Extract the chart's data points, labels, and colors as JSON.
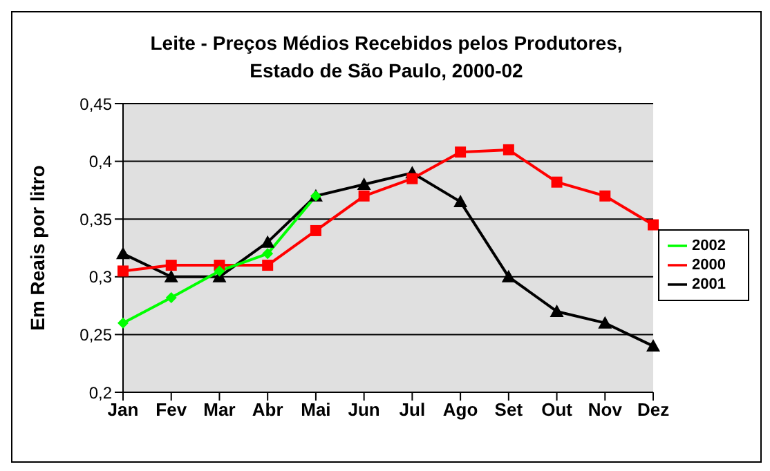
{
  "chart_data": {
    "type": "line",
    "title": "Leite - Preços Médios Recebidos pelos Produtores, Estado de São Paulo, 2000-02",
    "ylabel": "Em Reais por litro",
    "categories": [
      "Jan",
      "Fev",
      "Mar",
      "Abr",
      "Mai",
      "Jun",
      "Jul",
      "Ago",
      "Set",
      "Out",
      "Nov",
      "Dez"
    ],
    "series": [
      {
        "name": "2002",
        "color": "#00ff00",
        "marker": "diamond",
        "values": [
          0.26,
          0.282,
          0.305,
          0.32,
          0.37,
          null,
          null,
          null,
          null,
          null,
          null,
          null
        ]
      },
      {
        "name": "2000",
        "color": "#ff0000",
        "marker": "square",
        "values": [
          0.305,
          0.31,
          0.31,
          0.31,
          0.34,
          0.37,
          0.385,
          0.408,
          0.41,
          0.382,
          0.37,
          0.345
        ]
      },
      {
        "name": "2001",
        "color": "#000000",
        "marker": "triangle",
        "values": [
          0.32,
          0.3,
          0.3,
          0.33,
          0.37,
          0.38,
          0.39,
          0.365,
          0.3,
          0.27,
          0.26,
          0.24
        ]
      }
    ],
    "ylim": [
      0.2,
      0.45
    ],
    "yticks": [
      {
        "value": 0.2,
        "label": "0,2"
      },
      {
        "value": 0.25,
        "label": "0,25"
      },
      {
        "value": 0.3,
        "label": "0,3"
      },
      {
        "value": 0.35,
        "label": "0,35"
      },
      {
        "value": 0.4,
        "label": "0,4"
      },
      {
        "value": 0.45,
        "label": "0,45"
      }
    ],
    "grid": "y",
    "legend": "right"
  }
}
